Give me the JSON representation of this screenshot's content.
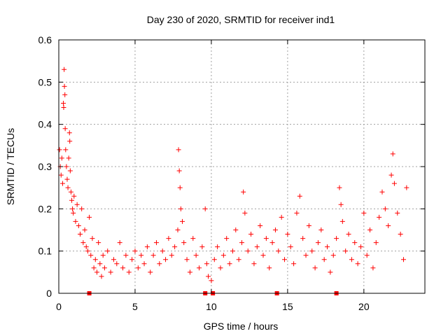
{
  "chart_data": {
    "type": "scatter",
    "title": "Day 230 of 2020, SRMTID for receiver ind1",
    "xlabel": "GPS time / hours",
    "ylabel": "SRMTID / TECUs",
    "xlim": [
      0,
      24
    ],
    "ylim": [
      0,
      0.6
    ],
    "x_ticks": [
      0,
      5,
      10,
      15,
      20
    ],
    "y_ticks": [
      0,
      0.1,
      0.2,
      0.3,
      0.4,
      0.5,
      0.6
    ],
    "x_tick_labels": [
      "0",
      "5",
      "10",
      "15",
      "20"
    ],
    "y_tick_labels": [
      "0",
      "0.1",
      "0.2",
      "0.3",
      "0.4",
      "0.5",
      "0.6"
    ],
    "grid": true,
    "marker": "plus",
    "color": "#ff0000",
    "series": [
      {
        "name": "SRMTID",
        "points": [
          [
            0.05,
            0.34
          ],
          [
            0.1,
            0.3
          ],
          [
            0.15,
            0.28
          ],
          [
            0.2,
            0.32
          ],
          [
            0.25,
            0.26
          ],
          [
            0.3,
            0.45
          ],
          [
            0.32,
            0.44
          ],
          [
            0.35,
            0.53
          ],
          [
            0.37,
            0.49
          ],
          [
            0.4,
            0.47
          ],
          [
            0.42,
            0.39
          ],
          [
            0.45,
            0.34
          ],
          [
            0.5,
            0.3
          ],
          [
            0.55,
            0.27
          ],
          [
            0.6,
            0.25
          ],
          [
            0.65,
            0.32
          ],
          [
            0.7,
            0.38
          ],
          [
            0.72,
            0.36
          ],
          [
            0.75,
            0.29
          ],
          [
            0.8,
            0.24
          ],
          [
            0.85,
            0.22
          ],
          [
            0.9,
            0.2
          ],
          [
            0.95,
            0.19
          ],
          [
            1.0,
            0.23
          ],
          [
            1.1,
            0.17
          ],
          [
            1.2,
            0.21
          ],
          [
            1.3,
            0.16
          ],
          [
            1.4,
            0.14
          ],
          [
            1.5,
            0.2
          ],
          [
            1.6,
            0.12
          ],
          [
            1.7,
            0.15
          ],
          [
            1.8,
            0.11
          ],
          [
            1.9,
            0.1
          ],
          [
            2.0,
            0.18
          ],
          [
            2.1,
            0.09
          ],
          [
            2.2,
            0.13
          ],
          [
            2.3,
            0.06
          ],
          [
            2.4,
            0.08
          ],
          [
            2.5,
            0.05
          ],
          [
            2.6,
            0.12
          ],
          [
            2.7,
            0.07
          ],
          [
            2.8,
            0.04
          ],
          [
            2.9,
            0.09
          ],
          [
            3.0,
            0.06
          ],
          [
            3.2,
            0.1
          ],
          [
            3.4,
            0.05
          ],
          [
            3.6,
            0.08
          ],
          [
            3.8,
            0.07
          ],
          [
            4.0,
            0.12
          ],
          [
            4.2,
            0.06
          ],
          [
            4.4,
            0.09
          ],
          [
            4.6,
            0.05
          ],
          [
            4.8,
            0.08
          ],
          [
            5.0,
            0.1
          ],
          [
            5.2,
            0.06
          ],
          [
            5.4,
            0.09
          ],
          [
            5.6,
            0.07
          ],
          [
            5.8,
            0.11
          ],
          [
            6.0,
            0.05
          ],
          [
            6.2,
            0.09
          ],
          [
            6.4,
            0.12
          ],
          [
            6.6,
            0.07
          ],
          [
            6.8,
            0.1
          ],
          [
            7.0,
            0.08
          ],
          [
            7.2,
            0.13
          ],
          [
            7.4,
            0.09
          ],
          [
            7.6,
            0.11
          ],
          [
            7.8,
            0.15
          ],
          [
            7.85,
            0.34
          ],
          [
            7.9,
            0.29
          ],
          [
            7.95,
            0.25
          ],
          [
            8.0,
            0.2
          ],
          [
            8.1,
            0.17
          ],
          [
            8.2,
            0.12
          ],
          [
            8.4,
            0.08
          ],
          [
            8.6,
            0.05
          ],
          [
            8.8,
            0.13
          ],
          [
            9.0,
            0.09
          ],
          [
            9.2,
            0.06
          ],
          [
            9.4,
            0.11
          ],
          [
            9.6,
            0.2
          ],
          [
            9.7,
            0.07
          ],
          [
            9.8,
            0.04
          ],
          [
            10.0,
            0.03
          ],
          [
            10.2,
            0.08
          ],
          [
            10.4,
            0.11
          ],
          [
            10.6,
            0.06
          ],
          [
            10.8,
            0.09
          ],
          [
            11.0,
            0.13
          ],
          [
            11.2,
            0.07
          ],
          [
            11.4,
            0.1
          ],
          [
            11.6,
            0.15
          ],
          [
            11.8,
            0.08
          ],
          [
            12.0,
            0.12
          ],
          [
            12.1,
            0.24
          ],
          [
            12.2,
            0.19
          ],
          [
            12.4,
            0.1
          ],
          [
            12.6,
            0.14
          ],
          [
            12.8,
            0.07
          ],
          [
            13.0,
            0.11
          ],
          [
            13.2,
            0.16
          ],
          [
            13.4,
            0.09
          ],
          [
            13.6,
            0.13
          ],
          [
            13.8,
            0.06
          ],
          [
            14.0,
            0.12
          ],
          [
            14.2,
            0.15
          ],
          [
            14.4,
            0.1
          ],
          [
            14.6,
            0.18
          ],
          [
            14.8,
            0.08
          ],
          [
            15.0,
            0.14
          ],
          [
            15.2,
            0.11
          ],
          [
            15.4,
            0.07
          ],
          [
            15.6,
            0.19
          ],
          [
            15.8,
            0.23
          ],
          [
            16.0,
            0.13
          ],
          [
            16.2,
            0.09
          ],
          [
            16.4,
            0.16
          ],
          [
            16.6,
            0.1
          ],
          [
            16.8,
            0.06
          ],
          [
            17.0,
            0.12
          ],
          [
            17.2,
            0.15
          ],
          [
            17.4,
            0.08
          ],
          [
            17.6,
            0.11
          ],
          [
            17.8,
            0.05
          ],
          [
            18.0,
            0.09
          ],
          [
            18.2,
            0.13
          ],
          [
            18.4,
            0.25
          ],
          [
            18.5,
            0.21
          ],
          [
            18.6,
            0.17
          ],
          [
            18.8,
            0.1
          ],
          [
            19.0,
            0.14
          ],
          [
            19.2,
            0.08
          ],
          [
            19.4,
            0.12
          ],
          [
            19.6,
            0.07
          ],
          [
            19.8,
            0.11
          ],
          [
            20.0,
            0.19
          ],
          [
            20.2,
            0.09
          ],
          [
            20.4,
            0.15
          ],
          [
            20.6,
            0.06
          ],
          [
            20.8,
            0.12
          ],
          [
            21.0,
            0.18
          ],
          [
            21.2,
            0.24
          ],
          [
            21.4,
            0.2
          ],
          [
            21.6,
            0.16
          ],
          [
            21.8,
            0.28
          ],
          [
            21.9,
            0.33
          ],
          [
            22.0,
            0.26
          ],
          [
            22.2,
            0.19
          ],
          [
            22.4,
            0.14
          ],
          [
            22.6,
            0.08
          ],
          [
            22.8,
            0.25
          ]
        ]
      }
    ],
    "zero_markers_x": [
      2.0,
      9.6,
      10.1,
      14.3,
      18.2
    ]
  }
}
